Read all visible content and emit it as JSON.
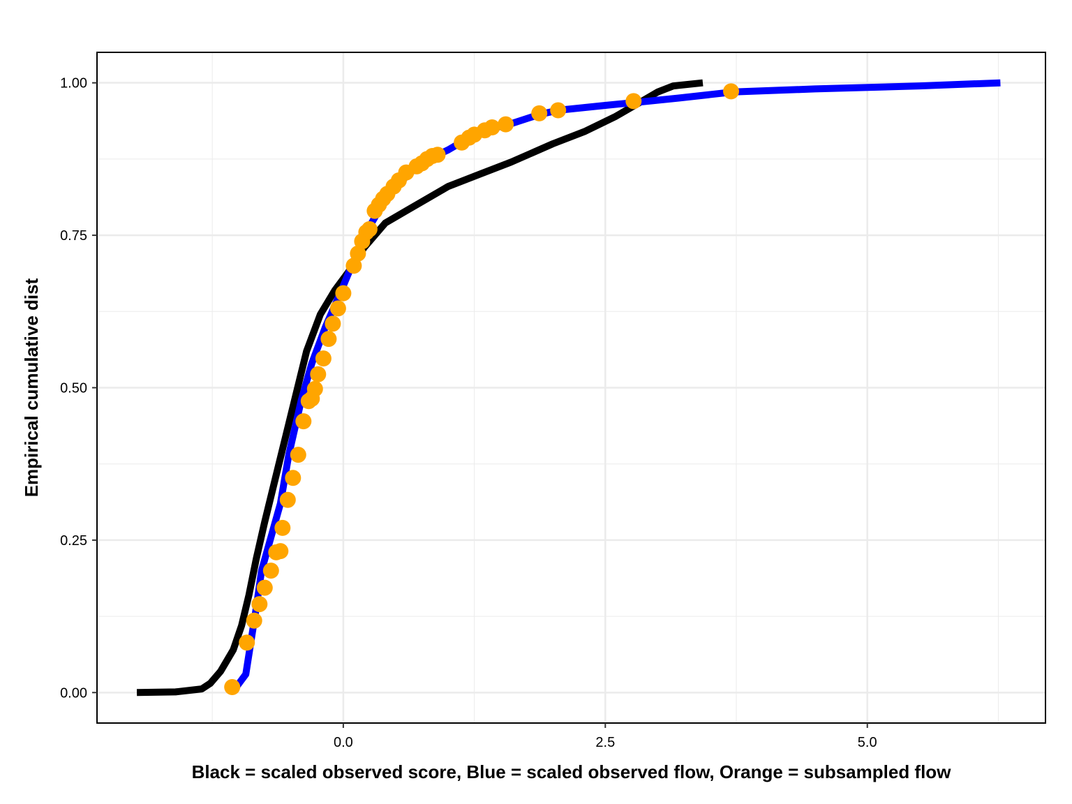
{
  "chart_data": {
    "type": "line",
    "title": "",
    "xlabel": "Black = scaled observed score, Blue = scaled observed flow, Orange = subsampled flow",
    "ylabel": "Empirical cumulative dist",
    "xlim": [
      -2.35,
      6.7
    ],
    "ylim": [
      -0.05,
      1.05
    ],
    "x_ticks": [
      0.0,
      2.5,
      5.0
    ],
    "x_tick_labels": [
      "0.0",
      "2.5",
      "5.0"
    ],
    "y_ticks": [
      0.0,
      0.25,
      0.5,
      0.75,
      1.0
    ],
    "y_tick_labels": [
      "0.00",
      "0.25",
      "0.50",
      "0.75",
      "1.00"
    ],
    "grid": true,
    "legend": "none",
    "colors": {
      "score": "#000000",
      "flow": "#0000ff",
      "subsampled": "#ffa500",
      "grid": "#ebebeb"
    },
    "series": [
      {
        "kind": "line",
        "color": "#000000",
        "points": [
          [
            -1.97,
            0.0
          ],
          [
            -1.6,
            0.001
          ],
          [
            -1.35,
            0.006
          ],
          [
            -1.27,
            0.015
          ],
          [
            -1.17,
            0.035
          ],
          [
            -1.05,
            0.07
          ],
          [
            -0.97,
            0.11
          ],
          [
            -0.9,
            0.16
          ],
          [
            -0.83,
            0.22
          ],
          [
            -0.75,
            0.28
          ],
          [
            -0.65,
            0.35
          ],
          [
            -0.55,
            0.42
          ],
          [
            -0.45,
            0.49
          ],
          [
            -0.35,
            0.56
          ],
          [
            -0.22,
            0.62
          ],
          [
            -0.08,
            0.66
          ],
          [
            0.05,
            0.69
          ],
          [
            0.2,
            0.73
          ],
          [
            0.4,
            0.77
          ],
          [
            0.6,
            0.79
          ],
          [
            0.8,
            0.81
          ],
          [
            1.0,
            0.83
          ],
          [
            1.3,
            0.85
          ],
          [
            1.6,
            0.87
          ],
          [
            2.0,
            0.9
          ],
          [
            2.3,
            0.92
          ],
          [
            2.6,
            0.945
          ],
          [
            2.8,
            0.965
          ],
          [
            3.0,
            0.985
          ],
          [
            3.15,
            0.995
          ],
          [
            3.43,
            1.0
          ]
        ]
      },
      {
        "kind": "line",
        "color": "#0000ff",
        "points": [
          [
            -1.06,
            0.0
          ],
          [
            -0.93,
            0.03
          ],
          [
            -0.83,
            0.14
          ],
          [
            -0.78,
            0.2
          ],
          [
            -0.6,
            0.31
          ],
          [
            -0.52,
            0.39
          ],
          [
            -0.4,
            0.48
          ],
          [
            -0.3,
            0.54
          ],
          [
            -0.17,
            0.6
          ],
          [
            -0.03,
            0.655
          ],
          [
            0.08,
            0.7
          ],
          [
            0.22,
            0.755
          ],
          [
            0.32,
            0.785
          ],
          [
            0.5,
            0.83
          ],
          [
            0.75,
            0.87
          ],
          [
            1.0,
            0.89
          ],
          [
            1.2,
            0.91
          ],
          [
            1.4,
            0.925
          ],
          [
            1.55,
            0.93
          ],
          [
            1.87,
            0.948
          ],
          [
            2.05,
            0.955
          ],
          [
            2.5,
            0.963
          ],
          [
            2.8,
            0.968
          ],
          [
            3.2,
            0.975
          ],
          [
            3.72,
            0.985
          ],
          [
            4.5,
            0.99
          ],
          [
            5.5,
            0.995
          ],
          [
            6.27,
            1.0
          ]
        ]
      },
      {
        "kind": "points",
        "color": "#ffa500",
        "points": [
          [
            -1.06,
            0.009
          ],
          [
            -0.92,
            0.082
          ],
          [
            -0.85,
            0.118
          ],
          [
            -0.8,
            0.145
          ],
          [
            -0.75,
            0.172
          ],
          [
            -0.69,
            0.2
          ],
          [
            -0.64,
            0.23
          ],
          [
            -0.6,
            0.232
          ],
          [
            -0.58,
            0.27
          ],
          [
            -0.53,
            0.316
          ],
          [
            -0.48,
            0.352
          ],
          [
            -0.43,
            0.39
          ],
          [
            -0.38,
            0.445
          ],
          [
            -0.33,
            0.478
          ],
          [
            -0.3,
            0.482
          ],
          [
            -0.27,
            0.498
          ],
          [
            -0.24,
            0.522
          ],
          [
            -0.19,
            0.548
          ],
          [
            -0.14,
            0.58
          ],
          [
            -0.1,
            0.605
          ],
          [
            -0.05,
            0.63
          ],
          [
            0.0,
            0.655
          ],
          [
            0.1,
            0.7
          ],
          [
            0.14,
            0.72
          ],
          [
            0.18,
            0.74
          ],
          [
            0.22,
            0.755
          ],
          [
            0.25,
            0.76
          ],
          [
            0.3,
            0.79
          ],
          [
            0.34,
            0.8
          ],
          [
            0.38,
            0.81
          ],
          [
            0.42,
            0.818
          ],
          [
            0.48,
            0.83
          ],
          [
            0.53,
            0.84
          ],
          [
            0.6,
            0.853
          ],
          [
            0.7,
            0.863
          ],
          [
            0.75,
            0.868
          ],
          [
            0.8,
            0.875
          ],
          [
            0.85,
            0.88
          ],
          [
            0.9,
            0.882
          ],
          [
            1.13,
            0.902
          ],
          [
            1.2,
            0.91
          ],
          [
            1.25,
            0.915
          ],
          [
            1.35,
            0.922
          ],
          [
            1.42,
            0.927
          ],
          [
            1.55,
            0.932
          ],
          [
            1.87,
            0.95
          ],
          [
            2.05,
            0.955
          ],
          [
            2.77,
            0.97
          ],
          [
            3.7,
            0.986
          ]
        ]
      }
    ]
  }
}
